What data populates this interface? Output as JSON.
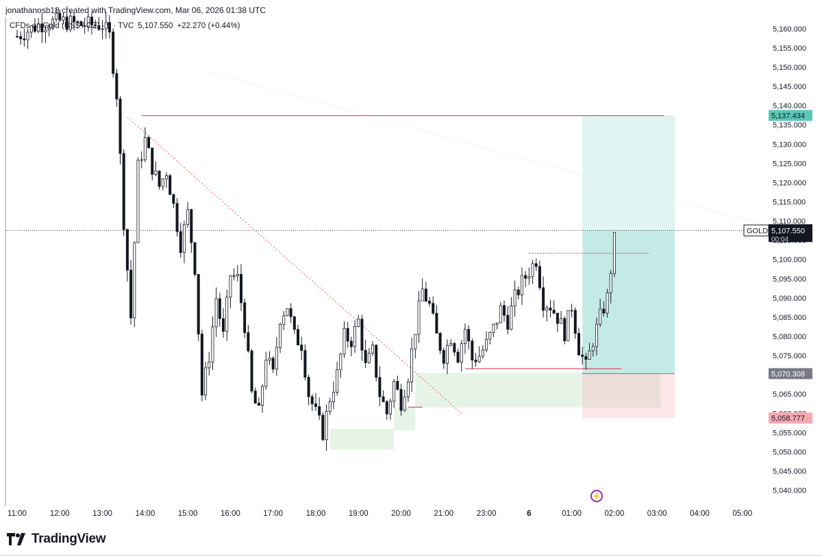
{
  "credit": "jonathanosb18 created with TradingView.com, Mar 06, 2026 01:38 UTC",
  "brand": {
    "name": "TradingView",
    "logo_icon": "tradingview-logo-icon"
  },
  "colors": {
    "candle": "#131722",
    "grid": "#f0f3fa",
    "level_line": "#d7264f",
    "trend_line": "#f7525f",
    "target_zone": "#8fd6cd",
    "stop_zone": "#f7b7be",
    "demand_zone": "#c8e6c9",
    "target_label": "#5cc6b6",
    "stop_label": "#f7a9b1",
    "entry_label": "#787b86",
    "price_label": "#131722",
    "lightning": "#9c27b0"
  },
  "chart_data": {
    "type": "candlestick",
    "title": "CFDs on Gold (US$ / OZ) · 5 · TVC",
    "last_price": "5,107.550",
    "change": "+22.270 (+0.44%)",
    "symbol": "GOLD",
    "last_price_label": "5,107.550",
    "countdown": "00:04",
    "target_label": "5,137.434",
    "entry_label": "5,070.308",
    "stop_label": "5,058.777",
    "y_ticks": [
      "5,160.000",
      "5,155.000",
      "5,150.000",
      "5,145.000",
      "5,140.000",
      "5,135.000",
      "5,130.000",
      "5,125.000",
      "5,120.000",
      "5,115.000",
      "5,110.000",
      "5,105.000",
      "5,100.000",
      "5,095.000",
      "5,090.000",
      "5,085.000",
      "5,080.000",
      "5,075.000",
      "5,070.000",
      "5,065.000",
      "5,060.000",
      "5,055.000",
      "5,050.000",
      "5,045.000",
      "5,040.000"
    ],
    "y_tick_values": [
      5160,
      5155,
      5150,
      5145,
      5140,
      5135,
      5130,
      5125,
      5120,
      5115,
      5110,
      5105,
      5100,
      5095,
      5090,
      5085,
      5080,
      5075,
      5070,
      5065,
      5060,
      5055,
      5050,
      5045,
      5040
    ],
    "x_ticks": [
      "11:00",
      "12:00",
      "13:00",
      "14:00",
      "15:00",
      "16:00",
      "17:00",
      "18:00",
      "19:00",
      "20:00",
      "21:00",
      "23:00",
      "6",
      "01:00",
      "02:00",
      "03:00",
      "04:00",
      "05:00"
    ],
    "x_tick_index": [
      0,
      12,
      24,
      36,
      48,
      60,
      72,
      84,
      96,
      108,
      120,
      132,
      144,
      156,
      168,
      180,
      192,
      204
    ],
    "ylim": [
      5036,
      5163
    ],
    "price_path": [
      [
        0,
        5158
      ],
      [
        6,
        5161
      ],
      [
        12,
        5162
      ],
      [
        18,
        5161
      ],
      [
        24,
        5161
      ],
      [
        26,
        5158
      ],
      [
        28,
        5143
      ],
      [
        30,
        5110
      ],
      [
        32,
        5085
      ],
      [
        34,
        5124
      ],
      [
        36,
        5131
      ],
      [
        38,
        5124
      ],
      [
        40,
        5119
      ],
      [
        42,
        5123
      ],
      [
        44,
        5114
      ],
      [
        46,
        5104
      ],
      [
        48,
        5112
      ],
      [
        50,
        5098
      ],
      [
        52,
        5065
      ],
      [
        54,
        5075
      ],
      [
        56,
        5090
      ],
      [
        58,
        5080
      ],
      [
        60,
        5096
      ],
      [
        62,
        5095
      ],
      [
        64,
        5083
      ],
      [
        66,
        5065
      ],
      [
        68,
        5060
      ],
      [
        70,
        5075
      ],
      [
        72,
        5070
      ],
      [
        74,
        5085
      ],
      [
        76,
        5088
      ],
      [
        78,
        5080
      ],
      [
        80,
        5078
      ],
      [
        82,
        5065
      ],
      [
        84,
        5060
      ],
      [
        86,
        5055
      ],
      [
        88,
        5064
      ],
      [
        90,
        5070
      ],
      [
        92,
        5080
      ],
      [
        94,
        5079
      ],
      [
        96,
        5084
      ],
      [
        98,
        5072
      ],
      [
        100,
        5076
      ],
      [
        102,
        5065
      ],
      [
        104,
        5060
      ],
      [
        106,
        5068
      ],
      [
        108,
        5063
      ],
      [
        110,
        5070
      ],
      [
        112,
        5082
      ],
      [
        114,
        5092
      ],
      [
        116,
        5088
      ],
      [
        118,
        5080
      ],
      [
        120,
        5075
      ],
      [
        122,
        5080
      ],
      [
        124,
        5075
      ],
      [
        126,
        5082
      ],
      [
        128,
        5074
      ],
      [
        130,
        5075
      ],
      [
        132,
        5078
      ],
      [
        134,
        5082
      ],
      [
        136,
        5087
      ],
      [
        138,
        5084
      ],
      [
        140,
        5090
      ],
      [
        142,
        5094
      ],
      [
        144,
        5097
      ],
      [
        146,
        5100
      ],
      [
        148,
        5089
      ],
      [
        150,
        5088
      ],
      [
        152,
        5085
      ],
      [
        154,
        5081
      ],
      [
        156,
        5088
      ],
      [
        158,
        5077
      ],
      [
        160,
        5072
      ],
      [
        162,
        5079
      ],
      [
        164,
        5085
      ],
      [
        166,
        5090
      ],
      [
        168,
        5105
      ],
      [
        169,
        5107.55
      ]
    ],
    "levels": [
      {
        "name": "swing-high",
        "price": 5137.4,
        "from": 35,
        "to": 182
      },
      {
        "name": "swing-high-2",
        "price": 5101.6,
        "from": 144,
        "to": 178
      },
      {
        "name": "swing-low",
        "price": 5071.6,
        "from": 126,
        "to": 170
      },
      {
        "name": "low-mark",
        "price": 5061.6,
        "from": 110,
        "to": 114
      }
    ],
    "trend_line": {
      "from": [
        31,
        5137
      ],
      "to": [
        125,
        5060
      ]
    },
    "long_line": {
      "from": [
        53,
        5149
      ],
      "to": [
        210,
        5109
      ]
    },
    "target_zone": {
      "from": 159,
      "to": 185,
      "top": 5137.434,
      "bottom": 5070.308
    },
    "stop_zone": {
      "from": 159,
      "to": 185,
      "top": 5070.308,
      "bottom": 5058.777
    },
    "demand_zones": [
      {
        "from": 88,
        "to": 106,
        "top": 5056,
        "bottom": 5050.5
      },
      {
        "from": 106,
        "to": 112,
        "top": 5061.5,
        "bottom": 5055.5
      },
      {
        "from": 112,
        "to": 181,
        "top": 5070.5,
        "bottom": 5061.5
      }
    ],
    "current_line": 5107.55
  }
}
